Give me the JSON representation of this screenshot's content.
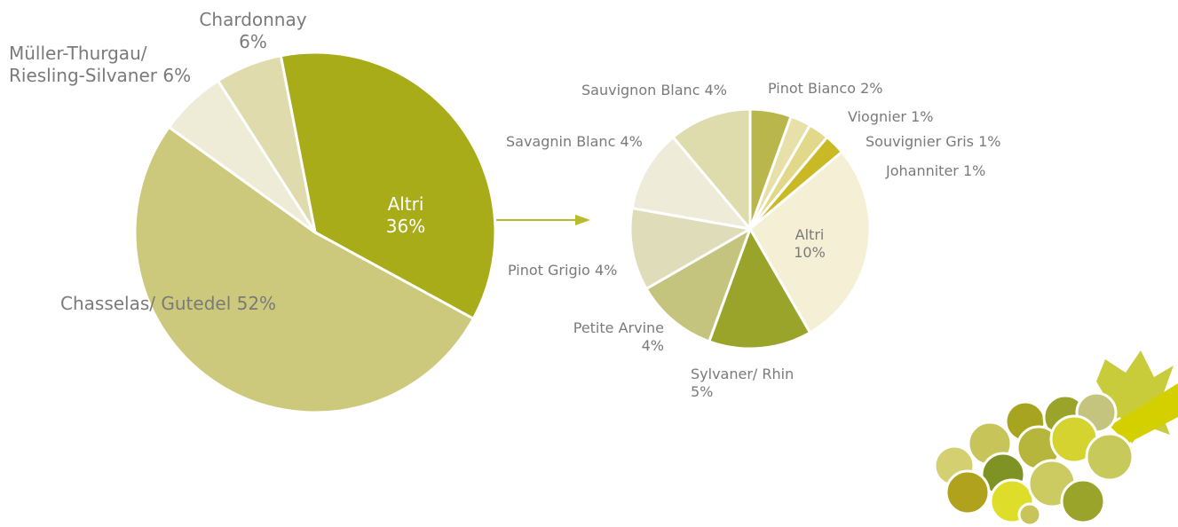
{
  "chart_data": [
    {
      "type": "pie",
      "categories": [
        "Altri",
        "Chasselas/ Gutedel",
        "Müller-Thurgau/ Riesling-Silvaner",
        "Chardonnay"
      ],
      "values": [
        36,
        52,
        6,
        6
      ],
      "value_labels": [
        "36%",
        "52%",
        "6%",
        "6%"
      ],
      "colors": [
        "#a9ac19",
        "#cdc97c",
        "#eeebd6",
        "#dfdbad"
      ]
    },
    {
      "type": "pie",
      "categories": [
        "Pinot Bianco",
        "Viognier",
        "Souvignier Gris",
        "Johanniter",
        "Altri",
        "Sylvaner/ Rhin",
        "Petite Arvine",
        "Pinot Grigio",
        "Savagnin Blanc",
        "Sauvignon Blanc"
      ],
      "values": [
        2,
        1,
        1,
        1,
        10,
        5,
        4,
        4,
        4,
        4
      ],
      "value_labels": [
        "2%",
        "1%",
        "1%",
        "1%",
        "10%",
        "5%",
        "4%",
        "4%",
        "4%",
        "4%"
      ],
      "colors": [
        "#b9b74c",
        "#e7e0a8",
        "#e2d88a",
        "#c8b925",
        "#f5efd6",
        "#9aa42a",
        "#c4c47f",
        "#dedcb9",
        "#eeecd8",
        "#dedbac"
      ]
    }
  ]
}
